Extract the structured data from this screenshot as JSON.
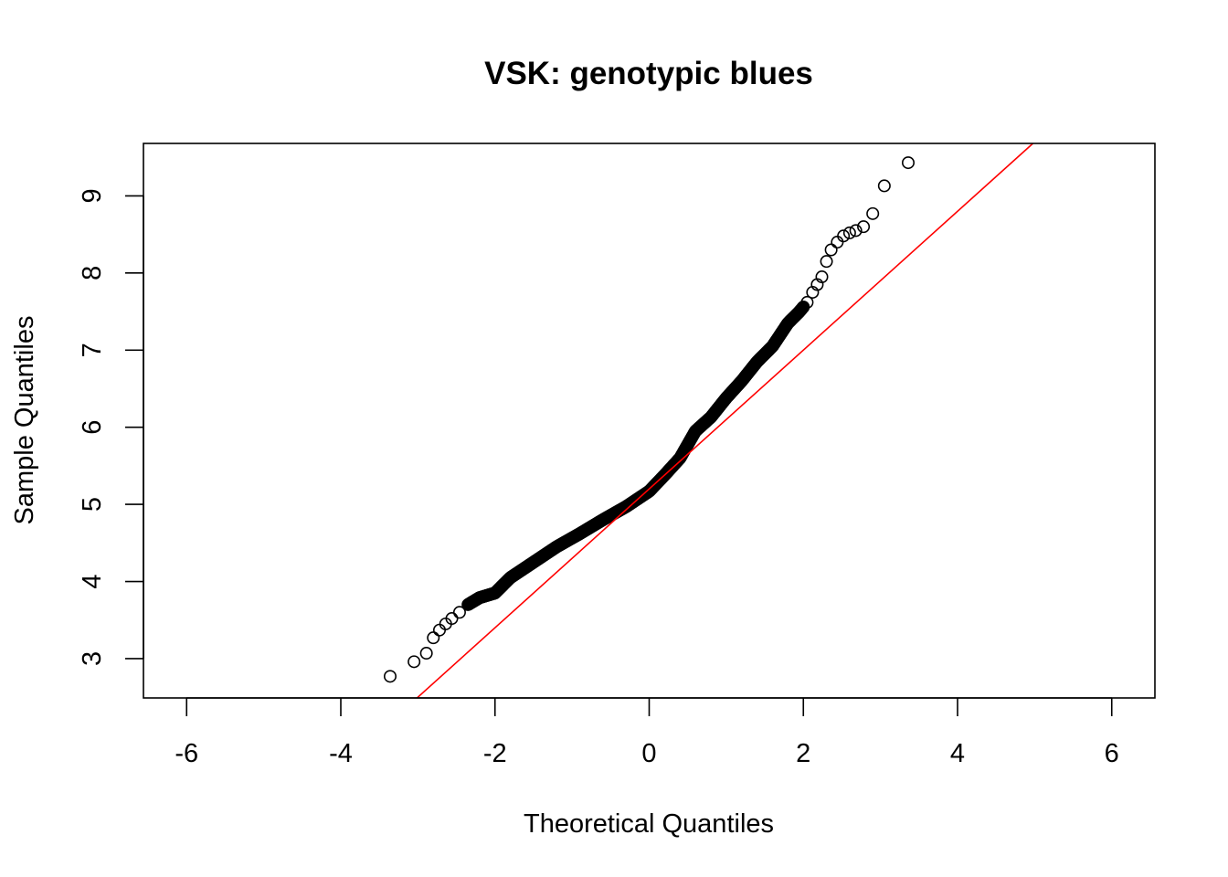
{
  "chart_data": {
    "type": "scatter",
    "title": "VSK: genotypic blues",
    "xlabel": "Theoretical Quantiles",
    "ylabel": "Sample Quantiles",
    "xlim": [
      -6.56,
      6.56
    ],
    "ylim": [
      2.49,
      9.68
    ],
    "x_ticks": [
      -6,
      -4,
      -2,
      0,
      2,
      4,
      6
    ],
    "y_ticks": [
      3,
      4,
      5,
      6,
      7,
      8,
      9
    ],
    "grid": false,
    "legend": "none",
    "point_color": "#000000",
    "reference_line": {
      "color": "#ff0000",
      "intercept": 5.2,
      "slope": 0.9
    },
    "notes_quantile_anchors": {
      "x": [
        -3.36,
        -3.05,
        -2.89,
        -2.8,
        -2.72,
        -2.64,
        -2.56,
        -2.46,
        -2.35,
        -2.2,
        -2.0,
        -1.8,
        -1.5,
        -1.2,
        -0.9,
        -0.6,
        -0.3,
        0.0,
        0.2,
        0.4,
        0.6,
        0.8,
        1.0,
        1.2,
        1.4,
        1.6,
        1.8,
        1.95,
        2.05,
        2.12,
        2.18,
        2.24,
        2.3,
        2.36,
        2.44,
        2.52,
        2.6,
        2.68,
        2.78,
        2.9,
        3.05,
        3.36
      ],
      "y": [
        2.77,
        2.96,
        3.07,
        3.27,
        3.37,
        3.45,
        3.52,
        3.6,
        3.7,
        3.79,
        3.85,
        4.05,
        4.25,
        4.45,
        4.62,
        4.8,
        4.97,
        5.17,
        5.38,
        5.6,
        5.95,
        6.13,
        6.38,
        6.6,
        6.85,
        7.05,
        7.35,
        7.5,
        7.62,
        7.75,
        7.85,
        7.95,
        8.15,
        8.3,
        8.4,
        8.48,
        8.52,
        8.55,
        8.6,
        8.77,
        9.13,
        9.43
      ]
    }
  }
}
